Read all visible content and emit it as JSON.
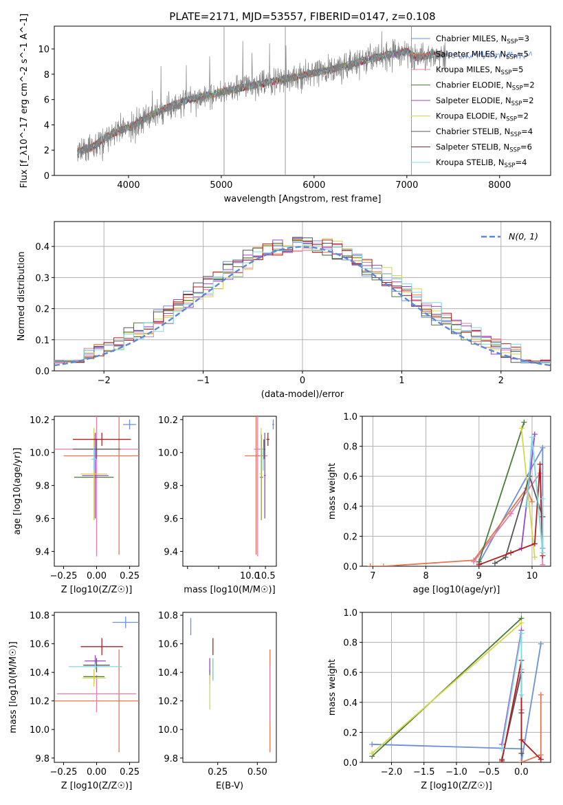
{
  "figure": {
    "title": "PLATE=2171, MJD=53557, FIBERID=0147, z=0.108",
    "colors": {
      "chabrier_miles": "#6a8fdf",
      "salpeter_miles": "#e6744a",
      "kroupa_miles": "#e47cae",
      "chabrier_elodie": "#4a7a3a",
      "salpeter_elodie": "#9944cc",
      "kroupa_elodie": "#d6d64a",
      "chabrier_stelib": "#555555",
      "salpeter_stelib": "#b21e1e",
      "kroupa_stelib": "#7fd8e0",
      "data": "#808080",
      "grid": "#b0b0b0",
      "normal_curve": "#5b87d8"
    }
  },
  "chart_data": [
    {
      "id": "spectrum",
      "type": "line",
      "xlabel": "wavelength [Angstrom, rest frame]",
      "ylabel": "Flux [f_λ10^-17 erg cm^-2 s^-1 A^-1]",
      "xlim": [
        3200,
        8550
      ],
      "ylim": [
        0,
        11.8
      ],
      "xticks": [
        4000,
        5000,
        6000,
        7000,
        8000
      ],
      "yticks": [
        0,
        2,
        4,
        6,
        8,
        10
      ],
      "grid": false,
      "legend_position": "right",
      "data_anchor": {
        "x": [
          3450,
          3600,
          3800,
          4000,
          4300,
          4600,
          5000,
          5400,
          5800,
          6200,
          6600,
          6900,
          7000,
          7100,
          7300,
          7420
        ],
        "y": [
          1.9,
          2.2,
          3.2,
          3.8,
          5.0,
          5.9,
          6.6,
          7.2,
          7.8,
          8.4,
          9.2,
          9.7,
          9.8,
          9.3,
          9.6,
          9.5
        ]
      },
      "legend": [
        {
          "key": "chabrier_miles",
          "label": "Chabrier MILES, N_SSP=3"
        },
        {
          "key": "salpeter_miles",
          "label": "Salpeter MILES, N_SSP=5"
        },
        {
          "key": "kroupa_miles",
          "label": "Kroupa MILES, N_SSP=5"
        },
        {
          "key": "chabrier_elodie",
          "label": "Chabrier ELODIE, N_SSP=2"
        },
        {
          "key": "salpeter_elodie",
          "label": "Salpeter ELODIE, N_SSP=2"
        },
        {
          "key": "kroupa_elodie",
          "label": "Kroupa ELODIE, N_SSP=2"
        },
        {
          "key": "chabrier_stelib",
          "label": "Chabrier STELIB, N_SSP=4"
        },
        {
          "key": "salpeter_stelib",
          "label": "Salpeter STELIB, N_SSP=6"
        },
        {
          "key": "kroupa_stelib",
          "label": "Kroupa STELIB, N_SSP=4"
        }
      ]
    },
    {
      "id": "residuals",
      "type": "line",
      "xlabel": "(data-model)/error",
      "ylabel": "Normed distribution",
      "xlim": [
        -2.5,
        2.5
      ],
      "ylim": [
        0,
        0.48
      ],
      "xticks": [
        -2,
        -1,
        0,
        1,
        2
      ],
      "yticks": [
        0.0,
        0.1,
        0.2,
        0.3,
        0.4
      ],
      "grid": true,
      "legend_position": "top-right",
      "legend_label": "N(0, 1)"
    },
    {
      "id": "age_vs_Z",
      "type": "scatter",
      "xlabel": "Z [log10(Z/Z☉)]",
      "ylabel": "age [log10(age/yr)]",
      "xlim": [
        -0.32,
        0.32
      ],
      "ylim": [
        9.31,
        10.22
      ],
      "xticks": [
        -0.25,
        0.0,
        0.25
      ],
      "yticks": [
        9.4,
        9.6,
        9.8,
        10.0,
        10.2
      ],
      "points": [
        {
          "key": "chabrier_miles",
          "x": 0.25,
          "y": 10.17,
          "xerr": 0.05,
          "yerr": 0.03
        },
        {
          "key": "salpeter_miles",
          "x": 0.17,
          "y": 9.98,
          "xerr": 0.42,
          "yerr": 0.6
        },
        {
          "key": "kroupa_miles",
          "x": 0.0,
          "y": 10.02,
          "xerr": 0.5,
          "yerr": 0.65
        },
        {
          "key": "chabrier_elodie",
          "x": -0.02,
          "y": 9.85,
          "xerr": 0.15,
          "yerr": 0.26
        },
        {
          "key": "salpeter_elodie",
          "x": -0.01,
          "y": 9.86,
          "xerr": 0.1,
          "yerr": 0.26
        },
        {
          "key": "kroupa_elodie",
          "x": -0.02,
          "y": 9.87,
          "xerr": 0.1,
          "yerr": 0.28
        },
        {
          "key": "chabrier_stelib",
          "x": 0.0,
          "y": 10.02,
          "xerr": 0.18,
          "yerr": 0.06
        },
        {
          "key": "salpeter_stelib",
          "x": 0.04,
          "y": 10.08,
          "xerr": 0.22,
          "yerr": 0.04
        },
        {
          "key": "kroupa_stelib",
          "x": -0.02,
          "y": 9.96,
          "xerr": 0.02,
          "yerr": 0.07
        }
      ]
    },
    {
      "id": "age_vs_mass",
      "type": "scatter",
      "xlabel": "mass [log10(M/M☉)]",
      "ylabel": "",
      "xlim": [
        7.85,
        10.85
      ],
      "ylim": [
        9.31,
        10.22
      ],
      "xticks": [
        8,
        9,
        10
      ],
      "xticklabels": [
        "",
        "",
        ""
      ],
      "xticks_labeled": [
        {
          "v": 10.0,
          "label": "10.0"
        },
        {
          "v": 10.5,
          "label": "10.5"
        }
      ],
      "yticks": [
        9.4,
        9.6,
        9.8,
        10.0,
        10.2
      ],
      "points": [
        {
          "key": "chabrier_miles",
          "x": 10.75,
          "y": 10.17,
          "xerr": 0.03,
          "yerr": 0.03
        },
        {
          "key": "salpeter_miles",
          "x": 10.2,
          "y": 9.98,
          "xerr": 0.36,
          "yerr": 0.6
        },
        {
          "key": "kroupa_miles",
          "x": 10.25,
          "y": 10.02,
          "xerr": 0.12,
          "yerr": 0.65
        },
        {
          "key": "chabrier_elodie",
          "x": 10.37,
          "y": 9.85,
          "xerr": 0.05,
          "yerr": 0.26
        },
        {
          "key": "salpeter_elodie",
          "x": 10.48,
          "y": 9.86,
          "xerr": 0.03,
          "yerr": 0.26
        },
        {
          "key": "kroupa_elodie",
          "x": 10.36,
          "y": 9.87,
          "xerr": 0.05,
          "yerr": 0.28
        },
        {
          "key": "chabrier_stelib",
          "x": 10.45,
          "y": 10.02,
          "xerr": 0.05,
          "yerr": 0.06
        },
        {
          "key": "salpeter_stelib",
          "x": 10.58,
          "y": 10.08,
          "xerr": 0.05,
          "yerr": 0.04
        },
        {
          "key": "kroupa_stelib",
          "x": 10.43,
          "y": 9.96,
          "xerr": 0.02,
          "yerr": 0.07
        }
      ]
    },
    {
      "id": "weight_vs_age",
      "type": "line",
      "xlabel": "age [log10(age/yr)]",
      "ylabel": "mass weight",
      "xlim": [
        6.8,
        10.35
      ],
      "ylim": [
        0,
        1.0
      ],
      "xticks": [
        7,
        8,
        9,
        10
      ],
      "yticks": [
        0.0,
        0.2,
        0.4,
        0.6,
        0.8,
        1.0
      ],
      "grid": true,
      "series": [
        {
          "key": "chabrier_miles",
          "x": [
            9.0,
            10.2,
            10.2
          ],
          "y": [
            0.02,
            0.79,
            0.12
          ]
        },
        {
          "key": "salpeter_miles",
          "x": [
            6.95,
            7.2,
            8.9,
            9.9,
            10.0
          ],
          "y": [
            0.0,
            0.0,
            0.04,
            0.52,
            0.43
          ]
        },
        {
          "key": "kroupa_miles",
          "x": [
            8.9,
            9.6,
            10.15,
            10.2
          ],
          "y": [
            0.03,
            0.35,
            0.62,
            0.01
          ]
        },
        {
          "key": "chabrier_elodie",
          "x": [
            9.0,
            9.85
          ],
          "y": [
            0.03,
            0.96
          ]
        },
        {
          "key": "salpeter_elodie",
          "x": [
            9.8,
            10.05
          ],
          "y": [
            0.12,
            0.88
          ]
        },
        {
          "key": "kroupa_elodie",
          "x": [
            9.8,
            10.05
          ],
          "y": [
            0.92,
            0.06
          ]
        },
        {
          "key": "chabrier_stelib",
          "x": [
            9.3,
            9.5,
            9.95,
            10.2
          ],
          "y": [
            0.02,
            0.06,
            0.6,
            0.33
          ]
        },
        {
          "key": "salpeter_stelib",
          "x": [
            9.0,
            9.6,
            10.05,
            10.15,
            10.2
          ],
          "y": [
            0.01,
            0.09,
            0.15,
            0.68,
            0.07
          ]
        },
        {
          "key": "kroupa_stelib",
          "x": [
            9.9,
            10.0,
            10.2,
            10.2
          ],
          "y": [
            0.4,
            0.86,
            0.09,
            0.45
          ]
        }
      ]
    },
    {
      "id": "mass_vs_Z",
      "type": "scatter",
      "xlabel": "Z [log10(Z/Z☉)]",
      "ylabel": "mass [log10(M/M☉)]",
      "xlim": [
        -0.32,
        0.32
      ],
      "ylim": [
        9.77,
        10.82
      ],
      "xticks": [
        -0.25,
        0.0,
        0.25
      ],
      "yticks": [
        9.8,
        10.0,
        10.2,
        10.4,
        10.6,
        10.8
      ],
      "points": [
        {
          "key": "chabrier_miles",
          "x": 0.22,
          "y": 10.75,
          "xerr": 0.1,
          "yerr": 0.04
        },
        {
          "key": "salpeter_miles",
          "x": 0.17,
          "y": 10.2,
          "xerr": 0.5,
          "yerr": 0.36
        },
        {
          "key": "kroupa_miles",
          "x": 0.0,
          "y": 10.25,
          "xerr": 0.3,
          "yerr": 0.13
        },
        {
          "key": "chabrier_elodie",
          "x": -0.02,
          "y": 10.37,
          "xerr": 0.08,
          "yerr": 0.05
        },
        {
          "key": "salpeter_elodie",
          "x": -0.01,
          "y": 10.48,
          "xerr": 0.08,
          "yerr": 0.04
        },
        {
          "key": "kroupa_elodie",
          "x": -0.02,
          "y": 10.36,
          "xerr": 0.09,
          "yerr": 0.06
        },
        {
          "key": "chabrier_stelib",
          "x": 0.0,
          "y": 10.45,
          "xerr": 0.1,
          "yerr": 0.05
        },
        {
          "key": "salpeter_stelib",
          "x": 0.04,
          "y": 10.58,
          "xerr": 0.16,
          "yerr": 0.06
        },
        {
          "key": "kroupa_stelib",
          "x": -0.01,
          "y": 10.44,
          "xerr": 0.2,
          "yerr": 0.02
        }
      ]
    },
    {
      "id": "mass_vs_ebv",
      "type": "scatter",
      "xlabel": "E(B-V)",
      "ylabel": "",
      "xlim": [
        0.03,
        0.62
      ],
      "ylim": [
        9.77,
        10.82
      ],
      "xticks": [
        0.25,
        0.5
      ],
      "xticklabels": [
        "0.25",
        "0.50"
      ],
      "yticks": [
        9.8,
        10.0,
        10.2,
        10.4,
        10.6,
        10.8
      ],
      "points": [
        {
          "key": "chabrier_miles",
          "x": 0.08,
          "y": 10.72,
          "xerr": 0.0,
          "yerr": 0.06
        },
        {
          "key": "salpeter_miles",
          "x": 0.58,
          "y": 10.2,
          "xerr": 0.0,
          "yerr": 0.36
        },
        {
          "key": "kroupa_miles",
          "x": 0.58,
          "y": 10.25,
          "xerr": 0.0,
          "yerr": 0.2
        },
        {
          "key": "chabrier_elodie",
          "x": 0.2,
          "y": 10.37,
          "xerr": 0.0,
          "yerr": 0.05
        },
        {
          "key": "salpeter_elodie",
          "x": 0.2,
          "y": 10.45,
          "xerr": 0.0,
          "yerr": 0.05
        },
        {
          "key": "kroupa_elodie",
          "x": 0.2,
          "y": 10.26,
          "xerr": 0.0,
          "yerr": 0.12
        },
        {
          "key": "chabrier_stelib",
          "x": 0.22,
          "y": 10.42,
          "xerr": 0.0,
          "yerr": 0.07
        },
        {
          "key": "salpeter_stelib",
          "x": 0.22,
          "y": 10.58,
          "xerr": 0.0,
          "yerr": 0.06
        },
        {
          "key": "kroupa_stelib",
          "x": 0.22,
          "y": 10.42,
          "xerr": 0.0,
          "yerr": 0.08
        }
      ]
    },
    {
      "id": "weight_vs_Z",
      "type": "line",
      "xlabel": "Z [log10(Z/Z☉)]",
      "ylabel": "mass weight",
      "xlim": [
        -2.45,
        0.45
      ],
      "ylim": [
        0,
        1.0
      ],
      "xticks": [
        -2.0,
        -1.5,
        -1.0,
        -0.5,
        0.0
      ],
      "yticks": [
        0.0,
        0.2,
        0.4,
        0.6,
        0.8,
        1.0
      ],
      "grid": true,
      "series": [
        {
          "key": "chabrier_miles",
          "x": [
            -2.3,
            0.0,
            0.0,
            0.3
          ],
          "y": [
            0.12,
            0.09,
            0.0,
            0.79
          ]
        },
        {
          "key": "salpeter_miles",
          "x": [
            0.0,
            0.3,
            0.3,
            0.3
          ],
          "y": [
            0.0,
            0.05,
            0.45,
            0.02
          ]
        },
        {
          "key": "kroupa_miles",
          "x": [
            -0.3,
            0.0,
            0.0
          ],
          "y": [
            0.02,
            0.62,
            0.35
          ]
        },
        {
          "key": "chabrier_elodie",
          "x": [
            -2.3,
            0.0
          ],
          "y": [
            0.04,
            0.96
          ]
        },
        {
          "key": "salpeter_elodie",
          "x": [
            -0.3,
            0.0
          ],
          "y": [
            0.12,
            0.88
          ]
        },
        {
          "key": "kroupa_elodie",
          "x": [
            -2.3,
            0.0
          ],
          "y": [
            0.06,
            0.93
          ]
        },
        {
          "key": "chabrier_stelib",
          "x": [
            -0.3,
            0.0,
            0.0,
            0.0
          ],
          "y": [
            0.02,
            0.6,
            0.33,
            0.06
          ]
        },
        {
          "key": "salpeter_stelib",
          "x": [
            -0.3,
            0.0,
            0.0,
            0.3
          ],
          "y": [
            0.01,
            0.68,
            0.15,
            0.02
          ]
        },
        {
          "key": "kroupa_stelib",
          "x": [
            -0.3,
            0.0,
            0.0
          ],
          "y": [
            0.09,
            0.86,
            0.45
          ]
        }
      ]
    }
  ]
}
